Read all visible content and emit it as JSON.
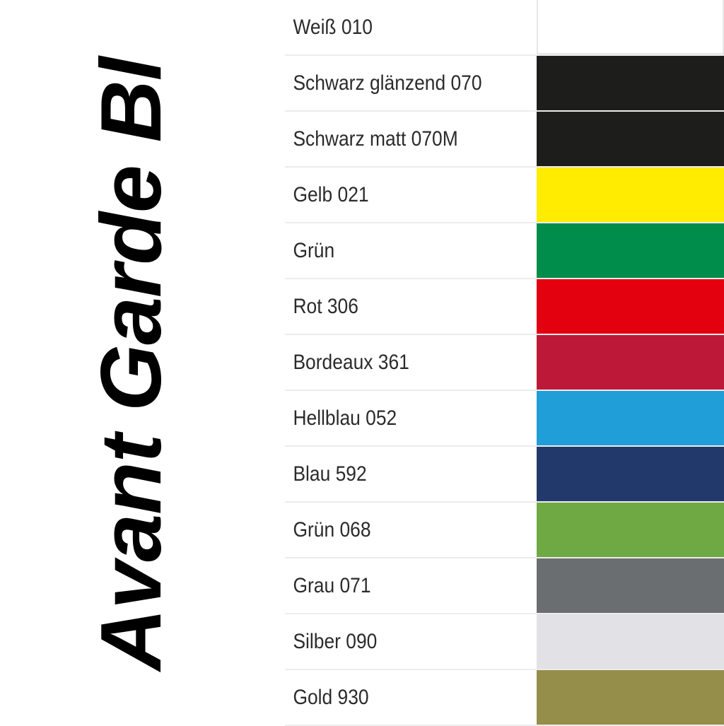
{
  "title": "Avant Garde Bl",
  "colors": [
    {
      "label": "Weiß 010",
      "hex": "#ffffff"
    },
    {
      "label": "Schwarz glänzend 070",
      "hex": "#1d1d1b"
    },
    {
      "label": "Schwarz matt 070M",
      "hex": "#1d1d1b"
    },
    {
      "label": "Gelb 021",
      "hex": "#ffec00"
    },
    {
      "label": "Grün",
      "hex": "#008c4a"
    },
    {
      "label": "Rot 306",
      "hex": "#e3000f"
    },
    {
      "label": "Bordeaux 361",
      "hex": "#be1838"
    },
    {
      "label": "Hellblau 052",
      "hex": "#1f9ed8"
    },
    {
      "label": "Blau 592",
      "hex": "#213a6b"
    },
    {
      "label": "Grün 068",
      "hex": "#6fa944"
    },
    {
      "label": "Grau 071",
      "hex": "#6b6e70"
    },
    {
      "label": "Silber 090",
      "hex": "#e1e1e6"
    },
    {
      "label": "Gold 930",
      "hex": "#958e4a"
    }
  ]
}
